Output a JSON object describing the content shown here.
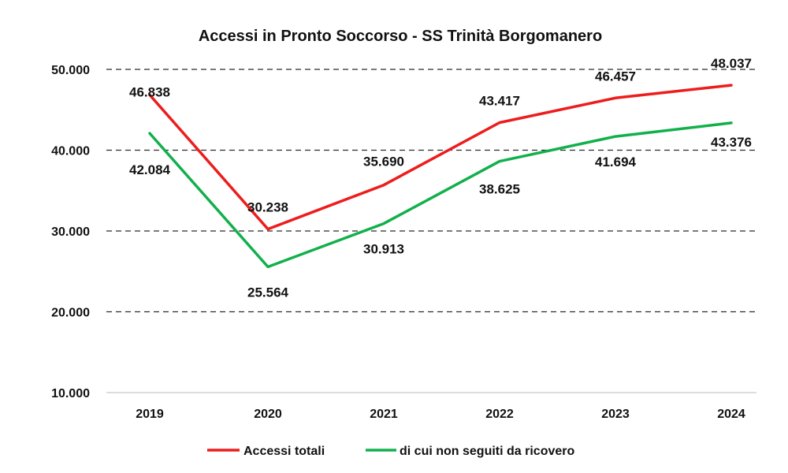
{
  "chart_data": {
    "type": "line",
    "title": "Accessi in Pronto Soccorso - SS Trinità Borgomanero",
    "xlabel": "",
    "ylabel": "",
    "categories": [
      "2019",
      "2020",
      "2021",
      "2022",
      "2023",
      "2024"
    ],
    "ylim": [
      10000,
      50000
    ],
    "yticks": [
      10000,
      20000,
      30000,
      40000,
      50000
    ],
    "ytick_labels": [
      "10.000",
      "20.000",
      "30.000",
      "40.000",
      "50.000"
    ],
    "grid": "horizontal dashed",
    "legend_position": "bottom",
    "series": [
      {
        "name": "Accessi totali",
        "color": "#ee1c1c",
        "values": [
          46838,
          30238,
          35690,
          43417,
          46457,
          48037
        ],
        "labels": [
          "46.838",
          "30.238",
          "35.690",
          "43.417",
          "46.457",
          "48.037"
        ]
      },
      {
        "name": "di cui non seguiti da ricovero",
        "color": "#12b04c",
        "values": [
          42084,
          25564,
          30913,
          38625,
          41694,
          43376
        ],
        "labels": [
          "42.084",
          "25.564",
          "30.913",
          "38.625",
          "41.694",
          "43.376"
        ]
      }
    ]
  }
}
